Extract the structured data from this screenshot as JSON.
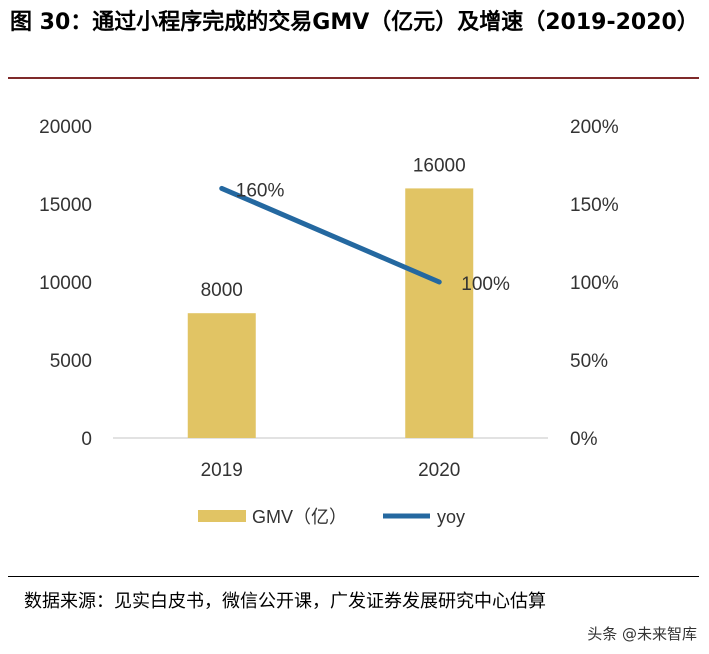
{
  "title": "图 30：通过小程序完成的交易GMV（亿元）及增速（2019-2020）",
  "source_note": "数据来源：见实白皮书，微信公开课，广发证券发展研究中心估算",
  "watermark": "头条 @未来智库",
  "colors": {
    "bar": "#E1C464",
    "line": "#2468A0",
    "axis": "#d9d9d9",
    "text": "#333333"
  },
  "chart_data": {
    "type": "bar",
    "categories": [
      "2019",
      "2020"
    ],
    "series": [
      {
        "name": "GMV（亿）",
        "type": "bar",
        "axis": "left",
        "values": [
          8000,
          16000
        ],
        "labels": [
          "8000",
          "16000"
        ]
      },
      {
        "name": "yoy",
        "type": "line",
        "axis": "right",
        "values": [
          160,
          100
        ],
        "labels": [
          "160%",
          "100%"
        ]
      }
    ],
    "y_left": {
      "min": 0,
      "max": 20000,
      "ticks": [
        "0",
        "5000",
        "10000",
        "15000",
        "20000"
      ]
    },
    "y_right": {
      "min": 0,
      "max": 200,
      "ticks": [
        "0%",
        "50%",
        "100%",
        "150%",
        "200%"
      ]
    },
    "legend": "bottom",
    "grid": false
  }
}
